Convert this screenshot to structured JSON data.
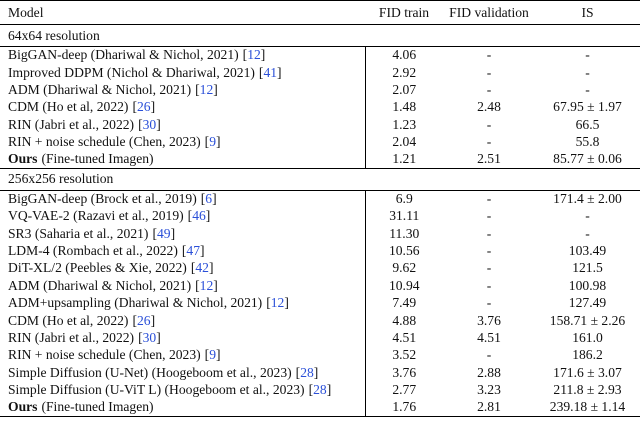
{
  "table": {
    "header": [
      "Model",
      "FID train",
      "FID validation",
      "IS"
    ],
    "sections": [
      {
        "title": "64x64 resolution",
        "rows": [
          {
            "model": "BigGAN-deep (Dhariwal & Nichol, 2021)",
            "ref": "[12]",
            "cells": [
              "4.06",
              "-",
              "-"
            ]
          },
          {
            "model": "Improved DDPM (Nichol & Dhariwal, 2021)",
            "ref": "[41]",
            "cells": [
              "2.92",
              "-",
              "-"
            ]
          },
          {
            "model": "ADM (Dhariwal & Nichol, 2021)",
            "ref": "[12]",
            "cells": [
              "2.07",
              "-",
              "-"
            ]
          },
          {
            "model": "CDM (Ho et al, 2022)",
            "ref": "[26]",
            "cells": [
              "1.48",
              "2.48",
              "67.95 ± 1.97"
            ]
          },
          {
            "model": "RIN (Jabri et al., 2022)",
            "ref": "[30]",
            "cells": [
              "1.23",
              "-",
              "66.5"
            ]
          },
          {
            "model": "RIN + noise schedule (Chen, 2023)",
            "ref": "[9]",
            "cells": [
              "2.04",
              "-",
              "55.8"
            ]
          },
          {
            "bold": "Ours",
            "model": "(Fine-tuned Imagen)",
            "cells": [
              "1.21",
              "2.51",
              "85.77 ± 0.06"
            ]
          }
        ]
      },
      {
        "title": "256x256 resolution",
        "rows": [
          {
            "model": "BigGAN-deep (Brock et al., 2019)",
            "ref": "[6]",
            "cells": [
              "6.9",
              "-",
              "171.4 ± 2.00"
            ]
          },
          {
            "model": "VQ-VAE-2 (Razavi et al., 2019)",
            "ref": "[46]",
            "cells": [
              "31.11",
              "-",
              "-"
            ]
          },
          {
            "model": "SR3 (Saharia et al., 2021)",
            "ref": "[49]",
            "cells": [
              "11.30",
              "-",
              "-"
            ]
          },
          {
            "model": "LDM-4 (Rombach et al., 2022)",
            "ref": "[47]",
            "cells": [
              "10.56",
              "-",
              "103.49"
            ]
          },
          {
            "model": "DiT-XL/2 (Peebles & Xie, 2022)",
            "ref": "[42]",
            "cells": [
              "9.62",
              "-",
              "121.5"
            ]
          },
          {
            "model": "ADM (Dhariwal & Nichol, 2021)",
            "ref": "[12]",
            "cells": [
              "10.94",
              "-",
              "100.98"
            ]
          },
          {
            "model": "ADM+upsampling (Dhariwal & Nichol, 2021)",
            "ref": "[12]",
            "cells": [
              "7.49",
              "-",
              "127.49"
            ]
          },
          {
            "model": "CDM (Ho et al, 2022)",
            "ref": "[26]",
            "cells": [
              "4.88",
              "3.76",
              "158.71 ± 2.26"
            ]
          },
          {
            "model": "RIN (Jabri et al., 2022)",
            "ref": "[30]",
            "cells": [
              "4.51",
              "4.51",
              "161.0"
            ]
          },
          {
            "model": "RIN + noise schedule (Chen, 2023)",
            "ref": "[9]",
            "cells": [
              "3.52",
              "-",
              "186.2"
            ]
          },
          {
            "model": "Simple Diffusion (U-Net) (Hoogeboom et al., 2023)",
            "ref": "[28]",
            "cells": [
              "3.76",
              "2.88",
              "171.6 ± 3.07"
            ]
          },
          {
            "model": "Simple Diffusion (U-ViT L) (Hoogeboom et al., 2023)",
            "ref": "[28]",
            "cells": [
              "2.77",
              "3.23",
              "211.8 ± 2.93"
            ]
          },
          {
            "bold": "Ours",
            "model": "(Fine-tuned Imagen)",
            "cells": [
              "1.76",
              "2.81",
              "239.18 ± 1.14"
            ]
          }
        ]
      }
    ]
  }
}
